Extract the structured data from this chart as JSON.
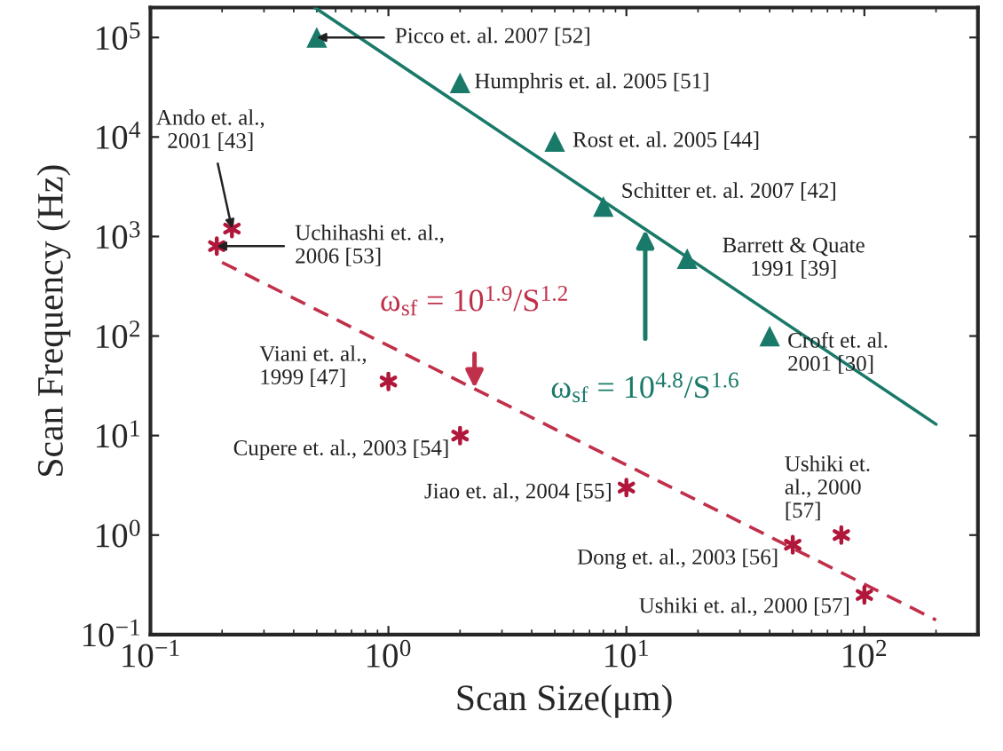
{
  "chart_data": {
    "type": "scatter",
    "xlabel": "Scan Size(μm)",
    "ylabel": "Scan Frequency (Hz)",
    "log": "xy",
    "grid": false,
    "xlim": [
      0.1,
      300
    ],
    "ylim": [
      0.1,
      200000
    ],
    "xticks": [
      {
        "value": 0.1,
        "label": "10$^{−1}$"
      },
      {
        "value": 1,
        "label": "10$^{0}$"
      },
      {
        "value": 10,
        "label": "10$^{1}$"
      },
      {
        "value": 100,
        "label": "10$^{2}$"
      }
    ],
    "yticks": [
      {
        "value": 0.1,
        "label": "10$^{−1}$"
      },
      {
        "value": 1,
        "label": "10$^{0}$"
      },
      {
        "value": 10,
        "label": "10$^{1}$"
      },
      {
        "value": 100,
        "label": "10$^{2}$"
      },
      {
        "value": 1000,
        "label": "10$^{3}$"
      },
      {
        "value": 10000,
        "label": "10$^{4}$"
      },
      {
        "value": 100000,
        "label": "10$^{5}$"
      }
    ],
    "series": [
      {
        "marker": "triangle",
        "color": "#1a7a6a",
        "x": [
          0.5,
          2,
          5,
          8,
          18,
          40
        ],
        "values": [
          100000,
          35000,
          9000,
          2000,
          600,
          100
        ]
      },
      {
        "marker": "cross",
        "color": "#b0173a",
        "x": [
          0.22,
          0.19,
          1,
          2,
          10,
          50,
          80,
          100
        ],
        "values": [
          1200,
          800,
          35,
          10,
          3,
          0.8,
          1,
          0.25
        ]
      },
      {
        "type": "line",
        "marker": "none",
        "line_style": "solid",
        "color": "#1a7a6a",
        "x": [
          0.49,
          200
        ],
        "values": [
          200000,
          13
        ]
      },
      {
        "type": "line",
        "marker": "none",
        "line_style": "dashed",
        "color": "#c0304a",
        "x": [
          0.2,
          200
        ],
        "values": [
          550,
          0.14
        ]
      }
    ],
    "annotations": [
      {
        "text": "Picco et. al. 2007 [52]",
        "x": 0.5,
        "y": 100000
      },
      {
        "text": "Humphris et. al. 2005 [51]",
        "x": 2,
        "y": 35000
      },
      {
        "text": "Rost et. al. 2005 [44]",
        "x": 5,
        "y": 9000
      },
      {
        "text": "Schitter et. al. 2007 [42]",
        "x": 8,
        "y": 2000
      },
      {
        "text": "Barrett & Quate\n1991 [39]",
        "x": 18,
        "y": 600
      },
      {
        "text": "Croft et. al.\n2001 [30]",
        "x": 40,
        "y": 100
      },
      {
        "text": "Ando et. al.,\n2001 [43]",
        "x": 0.22,
        "y": 1200
      },
      {
        "text": "Uchihashi et. al.,\n2006 [53]",
        "x": 0.19,
        "y": 800
      },
      {
        "text": "Viani et. al.,\n1999 [47]",
        "x": 1,
        "y": 35
      },
      {
        "text": "Cupere et. al., 2003 [54]",
        "x": 2,
        "y": 10
      },
      {
        "text": "Jiao et. al., 2004 [55]",
        "x": 10,
        "y": 3
      },
      {
        "text": "Dong et. al., 2003 [56]",
        "x": 50,
        "y": 0.8
      },
      {
        "text": "Ushiki et.\nal., 2000\n[57]",
        "x": 80,
        "y": 1
      },
      {
        "text": "Ushiki et. al., 2000 [57]",
        "x": 100,
        "y": 0.25
      },
      {
        "text": "ω$_{sf}$ = 10$^{1.9}$/S$^{1.2}$",
        "x": 2.3,
        "y": 30
      },
      {
        "text": "ω$_{sf}$ = 10$^{4.8}$/S$^{1.6}$",
        "x": 12,
        "y": 1170
      }
    ]
  }
}
